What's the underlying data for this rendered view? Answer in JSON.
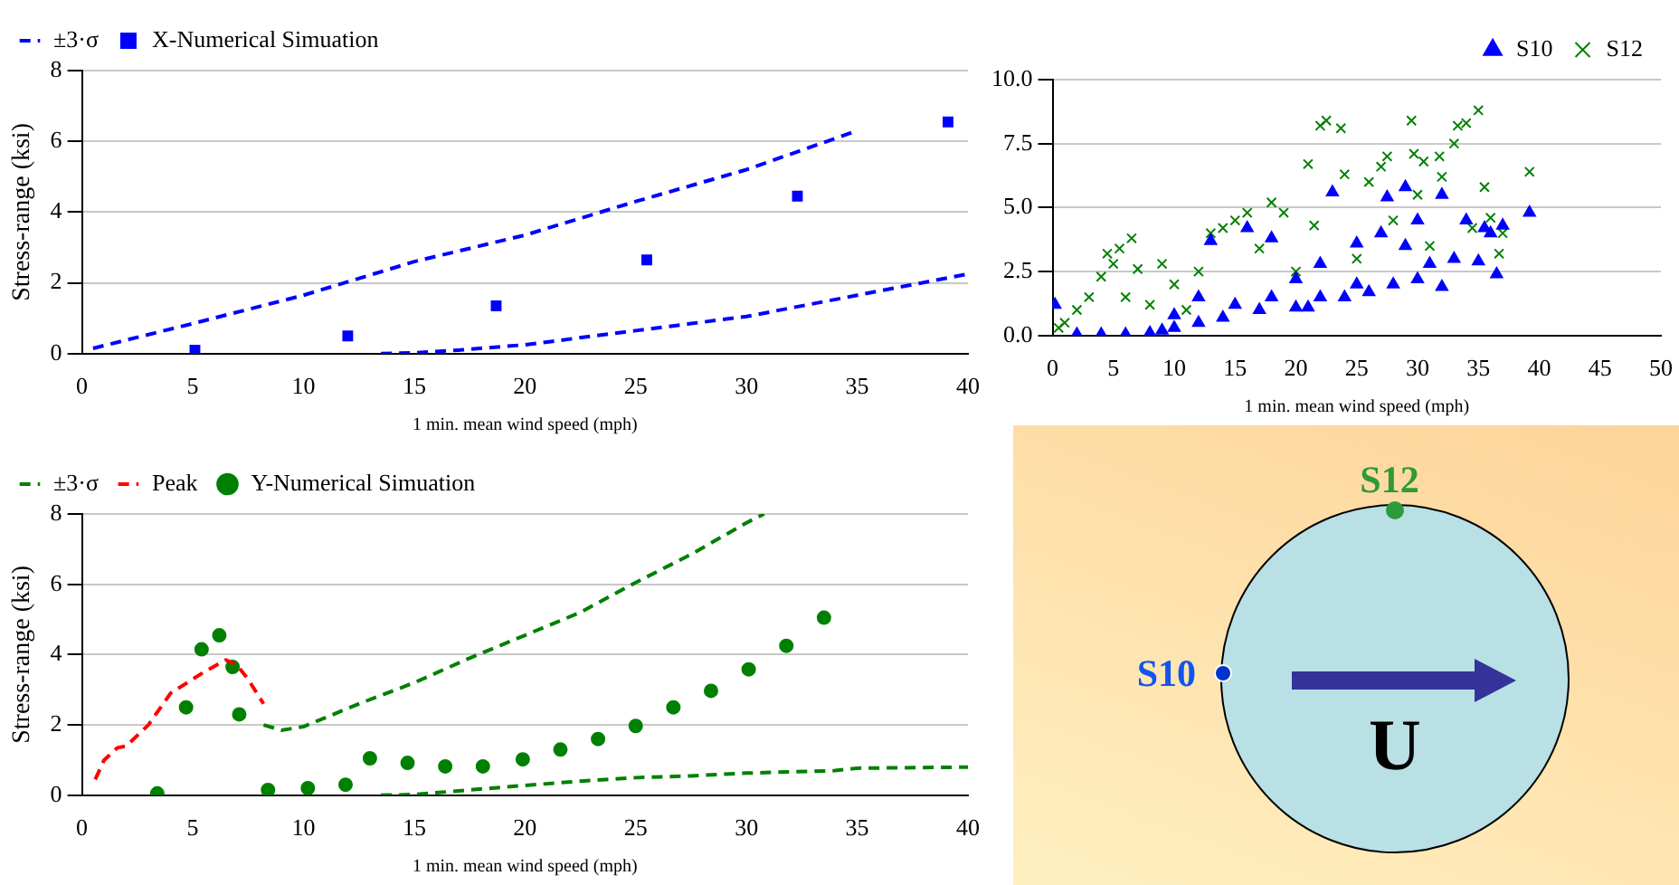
{
  "chart_data": [
    {
      "type": "scatter",
      "ylabel": "Stress-range (ksi)",
      "xlabel": "1 min. mean wind speed (mph)",
      "xlim": [
        0,
        40
      ],
      "xticks": [
        0,
        5,
        10,
        15,
        20,
        25,
        30,
        35,
        40
      ],
      "ylim": [
        0,
        8
      ],
      "yticks": [
        0,
        2,
        4,
        6,
        8
      ],
      "grid": "y",
      "legend": "top left",
      "series": [
        {
          "name": "±3·σ",
          "type": "line",
          "line_style": "dashed",
          "marker": "none",
          "color": "#0000ff",
          "x": [
            0.5,
            5,
            10,
            15,
            20,
            25,
            30,
            35
          ],
          "values": [
            0.15,
            0.85,
            1.65,
            2.6,
            3.35,
            4.3,
            5.2,
            6.3
          ]
        },
        {
          "type": "line",
          "line_style": "dashed",
          "marker": "none",
          "color": "#0000ff",
          "x": [
            13.5,
            15,
            17,
            20,
            25,
            30,
            35,
            40
          ],
          "values": [
            0,
            0.02,
            0.1,
            0.25,
            0.65,
            1.05,
            1.65,
            2.25
          ]
        },
        {
          "name": "X-Numerical Simuation",
          "type": "scatter",
          "marker": "square",
          "color": "#0000ff",
          "x": [
            5.1,
            12,
            18.7,
            25.5,
            32.3,
            39.1
          ],
          "values": [
            0.1,
            0.5,
            1.35,
            2.65,
            4.45,
            6.55
          ]
        }
      ]
    },
    {
      "type": "scatter",
      "xlabel": "1 min. mean wind speed (mph)",
      "xlim": [
        0,
        50
      ],
      "xticks": [
        0,
        5,
        10,
        15,
        20,
        25,
        30,
        35,
        40,
        45,
        50
      ],
      "ylim": [
        0,
        10
      ],
      "yticks": [
        {
          "value": 0,
          "label": "0.0"
        },
        {
          "value": 2.5,
          "label": "2.5"
        },
        {
          "value": 5,
          "label": "5.0"
        },
        {
          "value": 7.5,
          "label": "7.5"
        },
        {
          "value": 10,
          "label": "10.0"
        }
      ],
      "grid": "y",
      "legend": "top right",
      "series": [
        {
          "name": "S10",
          "marker": "triangle",
          "color": "#0000ff",
          "x": [
            0.2,
            2,
            4,
            6,
            8,
            9,
            10,
            10,
            12,
            12,
            13,
            14,
            15,
            16,
            17,
            18,
            18,
            20,
            20,
            21,
            22,
            22,
            23,
            24,
            25,
            25,
            26,
            27,
            27.5,
            28,
            29,
            29,
            30,
            30,
            31,
            32,
            32,
            33,
            34,
            35,
            35.5,
            36,
            36.5,
            37,
            39.2
          ],
          "values": [
            1.2,
            0.05,
            0.05,
            0.05,
            0.1,
            0.2,
            0.3,
            0.8,
            0.5,
            1.5,
            3.7,
            0.7,
            1.2,
            4.2,
            1,
            3.8,
            1.5,
            1.1,
            2.2,
            1.1,
            1.5,
            2.8,
            5.6,
            1.5,
            2,
            3.6,
            1.7,
            4,
            5.4,
            2,
            5.8,
            3.5,
            2.2,
            4.5,
            2.8,
            5.5,
            1.9,
            3,
            4.5,
            2.9,
            4.2,
            4,
            2.4,
            4.3,
            4.8
          ]
        },
        {
          "name": "S12",
          "marker": "cross",
          "color": "#008000",
          "x": [
            0.5,
            1,
            2,
            3,
            4,
            4.5,
            5,
            5.5,
            6,
            6.5,
            7,
            8,
            9,
            10,
            11,
            12,
            13,
            14,
            15,
            16,
            17,
            18,
            19,
            20,
            21,
            21.5,
            22,
            22.5,
            23.7,
            24,
            25,
            26,
            27,
            27.5,
            28,
            29.5,
            29.7,
            30,
            30.5,
            31,
            31.8,
            32,
            33,
            33.3,
            34,
            34.5,
            35,
            35.5,
            36,
            36.7,
            37,
            39.2
          ],
          "values": [
            0.3,
            0.5,
            1,
            1.5,
            2.3,
            3.2,
            2.8,
            3.4,
            1.5,
            3.8,
            2.6,
            1.2,
            2.8,
            2,
            1,
            2.5,
            4,
            4.2,
            4.5,
            4.8,
            3.4,
            5.2,
            4.8,
            2.5,
            6.7,
            4.3,
            8.2,
            8.4,
            8.1,
            6.3,
            3,
            6,
            6.6,
            7,
            4.5,
            8.4,
            7.1,
            5.5,
            6.8,
            3.5,
            7,
            6.2,
            7.5,
            8.2,
            8.3,
            4.2,
            8.8,
            5.8,
            4.6,
            3.2,
            4,
            6.4
          ]
        }
      ]
    },
    {
      "type": "scatter",
      "ylabel": "Stress-range (ksi)",
      "xlabel": "1 min. mean wind speed (mph)",
      "xlim": [
        0,
        40
      ],
      "xticks": [
        0,
        5,
        10,
        15,
        20,
        25,
        30,
        35,
        40
      ],
      "ylim": [
        0,
        8
      ],
      "yticks": [
        0,
        2,
        4,
        6,
        8
      ],
      "grid": "y",
      "legend": "top left",
      "series": [
        {
          "name": "±3·σ",
          "type": "line",
          "line_style": "dashed",
          "marker": "none",
          "color": "#008000",
          "x": [
            8.2,
            9,
            10,
            12.5,
            15,
            17.5,
            20,
            22.5,
            25,
            27.5,
            30,
            30.8
          ],
          "values": [
            2,
            1.85,
            1.95,
            2.6,
            3.2,
            3.9,
            4.55,
            5.2,
            6.05,
            6.85,
            7.75,
            8
          ]
        },
        {
          "name": "Peak",
          "type": "line",
          "line_style": "dashed",
          "marker": "none",
          "color": "#ff0000",
          "x": [
            0.6,
            1,
            1.6,
            2,
            3,
            4,
            5,
            5.5,
            6.5,
            7,
            7.5,
            8.2
          ],
          "values": [
            0.45,
            1,
            1.35,
            1.4,
            2,
            2.9,
            3.3,
            3.5,
            3.85,
            3.7,
            3.3,
            2.6
          ]
        },
        {
          "type": "line",
          "line_style": "dashed",
          "marker": "none",
          "color": "#008000",
          "x": [
            13.5,
            15,
            17.5,
            20,
            22.5,
            25,
            27.5,
            30,
            34,
            35,
            40
          ],
          "values": [
            0,
            0.02,
            0.15,
            0.28,
            0.4,
            0.5,
            0.55,
            0.63,
            0.7,
            0.77,
            0.8
          ]
        },
        {
          "name": "Y-Numerical Simuation",
          "type": "scatter",
          "marker": "circle",
          "color": "#008000",
          "x": [
            3.4,
            4.7,
            5.4,
            6.2,
            6.8,
            7.1,
            8.4,
            10.2,
            11.9,
            13,
            14.7,
            16.4,
            18.1,
            19.9,
            21.6,
            23.3,
            25,
            26.7,
            28.4,
            30.1,
            31.8,
            33.5
          ],
          "values": [
            0.05,
            2.5,
            4.15,
            4.55,
            3.65,
            2.3,
            0.15,
            0.2,
            0.3,
            1.05,
            0.92,
            0.82,
            0.82,
            1.02,
            1.3,
            1.6,
            1.97,
            2.5,
            2.97,
            3.58,
            4.25,
            5.05
          ]
        }
      ]
    },
    {
      "type": "other",
      "annotations": [
        "S12",
        "S10",
        "U"
      ]
    }
  ]
}
